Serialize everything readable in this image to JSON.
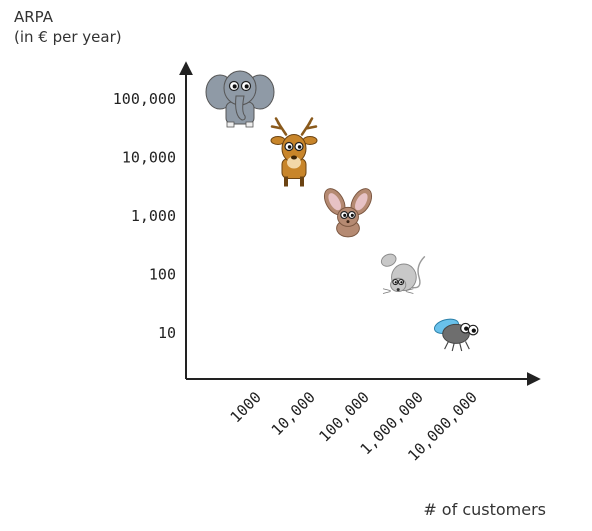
{
  "chart_data": {
    "type": "scatter",
    "ylabel_line1": "ARPA",
    "ylabel_line2": "(in € per year)",
    "xlabel": "# of customers",
    "x_scale": "log",
    "y_scale": "log",
    "x_ticks": [
      "1000",
      "10,000",
      "100,000",
      "1,000,000",
      "10,000,000"
    ],
    "y_ticks": [
      "100,000",
      "10,000",
      "1,000",
      "100",
      "10"
    ],
    "points": [
      {
        "x": 1000,
        "y": 100000,
        "marker": "elephant-icon"
      },
      {
        "x": 10000,
        "y": 10000,
        "marker": "deer-icon"
      },
      {
        "x": 100000,
        "y": 1000,
        "marker": "rabbit-icon"
      },
      {
        "x": 1000000,
        "y": 100,
        "marker": "mouse-icon"
      },
      {
        "x": 10000000,
        "y": 10,
        "marker": "fly-icon"
      }
    ],
    "grid": false,
    "colors": {
      "axis": "#222222",
      "elephant": "#8f9aa6",
      "deer": "#c8852a",
      "rabbit": "#b58a72",
      "mouse": "#c8c8c8",
      "fly_body": "#6e6e6e",
      "fly_wing": "#4fb6e8"
    }
  }
}
